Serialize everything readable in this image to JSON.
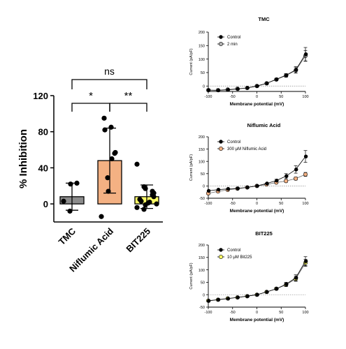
{
  "chart_data": [
    {
      "type": "bar",
      "ylabel": "% Inhibition",
      "categories": [
        "TMC",
        "Niflumic Acid",
        "BIT225"
      ],
      "ylim": [
        -20,
        120
      ],
      "yticks": [
        0,
        40,
        80,
        120
      ],
      "colors": [
        "#8c8c8c",
        "#f4b183",
        "#ffff66"
      ],
      "means": [
        8,
        48,
        8
      ],
      "sd": [
        15,
        36,
        13
      ],
      "points": [
        [
          3,
          -8,
          22,
          23
        ],
        [
          -14,
          29,
          14,
          56,
          57,
          95,
          82,
          85,
          50
        ],
        [
          44,
          19,
          17,
          14,
          8,
          5,
          3,
          1,
          2,
          0,
          -4,
          -6,
          -1,
          10,
          12
        ]
      ],
      "significance": [
        {
          "from": 0,
          "to": 2,
          "label": "ns"
        },
        {
          "from": 0,
          "to": 1,
          "label": "*"
        },
        {
          "from": 1,
          "to": 2,
          "label": "**"
        }
      ]
    },
    {
      "type": "line",
      "title": "TMC",
      "xlabel": "Membrane potential (mV)",
      "ylabel": "Current (pA/pF)",
      "xlim": [
        -100,
        100
      ],
      "ylim": [
        -20,
        200
      ],
      "xticks": [
        -100,
        -50,
        0,
        50,
        100
      ],
      "yticks": [
        0,
        50,
        100,
        150,
        200
      ],
      "x": [
        -100,
        -80,
        -60,
        -40,
        -20,
        0,
        20,
        40,
        60,
        80,
        100
      ],
      "series": [
        {
          "name": "Control",
          "color": "#000000",
          "values": [
            -15,
            -16,
            -14,
            -11,
            -7,
            0,
            10,
            25,
            40,
            60,
            118
          ],
          "err": [
            0,
            0,
            0,
            0,
            0,
            0,
            0,
            4,
            6,
            12,
            25
          ]
        },
        {
          "name": "2 min",
          "color": "#b0b0b0",
          "values": [
            -15,
            -15,
            -13,
            -10,
            -7,
            0,
            10,
            24,
            39,
            58,
            112
          ],
          "err": [
            0,
            0,
            0,
            0,
            0,
            0,
            0,
            4,
            6,
            10,
            20
          ]
        }
      ]
    },
    {
      "type": "line",
      "title": "Niflumic Acid",
      "xlabel": "Membrane potential (mV)",
      "ylabel": "Current (pA/pF)",
      "xlim": [
        -100,
        100
      ],
      "ylim": [
        -50,
        200
      ],
      "xticks": [
        -100,
        -50,
        0,
        50,
        100
      ],
      "yticks": [
        -50,
        0,
        50,
        100,
        150,
        200
      ],
      "x": [
        -100,
        -80,
        -60,
        -40,
        -20,
        0,
        20,
        40,
        60,
        80,
        100
      ],
      "series": [
        {
          "name": "Control",
          "color": "#000000",
          "values": [
            -20,
            -15,
            -12,
            -10,
            -6,
            0,
            10,
            22,
            40,
            67,
            120
          ],
          "err": [
            0,
            0,
            0,
            0,
            0,
            0,
            0,
            5,
            10,
            15,
            24
          ]
        },
        {
          "name": "300 μM Niflumic Acid",
          "color": "#f4b183",
          "values": [
            -30,
            -22,
            -16,
            -11,
            -6,
            0,
            6,
            14,
            20,
            30,
            47
          ],
          "err": [
            5,
            0,
            0,
            0,
            0,
            0,
            0,
            4,
            5,
            6,
            8
          ]
        }
      ]
    },
    {
      "type": "line",
      "title": "BIT225",
      "xlabel": "Membrane potential (mV)",
      "ylabel": "Current (pA/pF)",
      "xlim": [
        -100,
        100
      ],
      "ylim": [
        -50,
        200
      ],
      "xticks": [
        -100,
        -50,
        0,
        50,
        100
      ],
      "yticks": [
        -50,
        0,
        50,
        100,
        150,
        200
      ],
      "x": [
        -100,
        -80,
        -60,
        -40,
        -20,
        0,
        20,
        40,
        60,
        80,
        100
      ],
      "series": [
        {
          "name": "Control",
          "color": "#000000",
          "values": [
            -25,
            -20,
            -16,
            -11,
            -6,
            0,
            11,
            24,
            42,
            68,
            135
          ],
          "err": [
            0,
            0,
            0,
            0,
            0,
            0,
            0,
            4,
            8,
            12,
            18
          ]
        },
        {
          "name": "10 μM Bit225",
          "color": "#ffff66",
          "values": [
            -24,
            -20,
            -15,
            -11,
            -6,
            0,
            11,
            24,
            40,
            64,
            128
          ],
          "err": [
            0,
            0,
            0,
            0,
            0,
            0,
            0,
            4,
            7,
            10,
            14
          ]
        }
      ]
    }
  ]
}
